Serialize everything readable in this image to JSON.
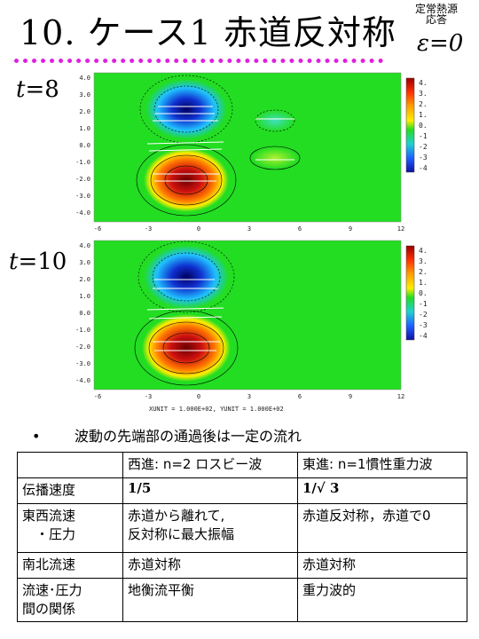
{
  "title": {
    "main": "10. ケース1 赤道反対称",
    "side_line1": "定常熱源",
    "side_line2": "応答",
    "epsilon": "ε=0"
  },
  "panels": [
    {
      "label_var": "t",
      "label_eq": "=8"
    },
    {
      "label_var": "t",
      "label_eq": "=10"
    }
  ],
  "axes": {
    "x_ticks": [
      "-6",
      "-3",
      "0",
      "3",
      "6",
      "9",
      "12"
    ],
    "y_ticks": [
      "4.0",
      "3.0",
      "2.0",
      "1.0",
      "0.0",
      "-1.0",
      "-2.0",
      "-3.0",
      "-4.0"
    ],
    "colorbar_ticks": [
      "4.0",
      "3.0",
      "2.0",
      "1.0",
      "0.0",
      "-1.0",
      "-2.0",
      "-3.0",
      "-4.0"
    ]
  },
  "unit_text": "XUNIT = 1.000E+02, YUNIT = 1.000E+02",
  "bullet": {
    "symbol": "•",
    "text": "波動の先端部の通過後は一定の流れ"
  },
  "table": {
    "header": [
      "",
      "西進: n=2 ロスビー波",
      "東進: n=1慣性重力波"
    ],
    "rows": [
      {
        "c0": "伝播速度",
        "c1": "1/5",
        "c2": "1/√ 3"
      },
      {
        "c0": "東西流速\n　・圧力",
        "c1": "赤道から離れて,\n反対称に最大振幅",
        "c2": "赤道反対称，赤道で0"
      },
      {
        "c0": "南北流速",
        "c1": "赤道対称",
        "c2": "赤道対称"
      },
      {
        "c0": "流速･圧力\n間の関係",
        "c1": "地衡流平衡",
        "c2": "重力波的"
      }
    ]
  },
  "colors": {
    "background_field": "#22dd22",
    "positive_peak": "#cc1010",
    "negative_peak": "#1030d0",
    "dotted_rule": "#e020e0"
  }
}
